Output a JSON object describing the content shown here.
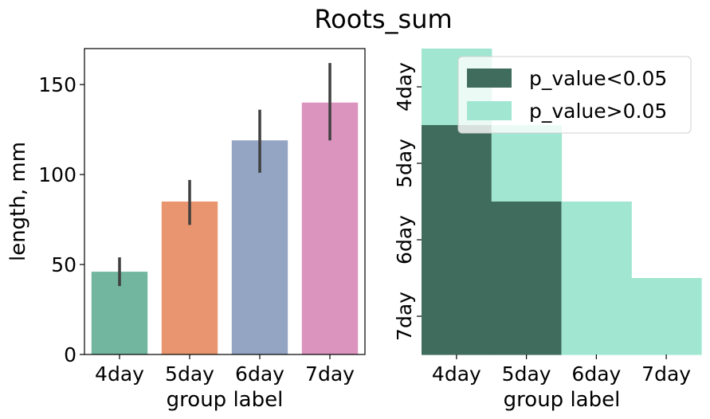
{
  "figure": {
    "title": "Roots_sum"
  },
  "chart_data": [
    {
      "type": "bar",
      "title": "",
      "xlabel": "group label",
      "ylabel": "length, mm",
      "categories": [
        "4day",
        "5day",
        "6day",
        "7day"
      ],
      "values": [
        46,
        85,
        119,
        140
      ],
      "error_low": [
        38,
        72,
        101,
        119
      ],
      "error_high": [
        54,
        97,
        136,
        162
      ],
      "ylim": [
        0,
        170
      ],
      "yticks": [
        0,
        50,
        100,
        150
      ],
      "colors": [
        "#72b6a0",
        "#e9956f",
        "#94a5c4",
        "#da94be"
      ],
      "error_color": "#3f3f3f"
    },
    {
      "type": "heatmap",
      "title": "",
      "xlabel": "group label",
      "ylabel": "",
      "x_categories": [
        "4day",
        "5day",
        "6day",
        "7day"
      ],
      "y_categories": [
        "4day",
        "5day",
        "6day",
        "7day"
      ],
      "cells": [
        [
          "p_value>0.05",
          null,
          null,
          null
        ],
        [
          "p_value<0.05",
          "p_value>0.05",
          null,
          null
        ],
        [
          "p_value<0.05",
          "p_value<0.05",
          "p_value>0.05",
          null
        ],
        [
          "p_value<0.05",
          "p_value<0.05",
          "p_value>0.05",
          "p_value>0.05"
        ]
      ],
      "legend": {
        "position": "top-right",
        "entries": [
          {
            "label": "p_value<0.05",
            "color": "#3f6c5c"
          },
          {
            "label": "p_value>0.05",
            "color": "#a1e6d1"
          }
        ]
      }
    }
  ]
}
